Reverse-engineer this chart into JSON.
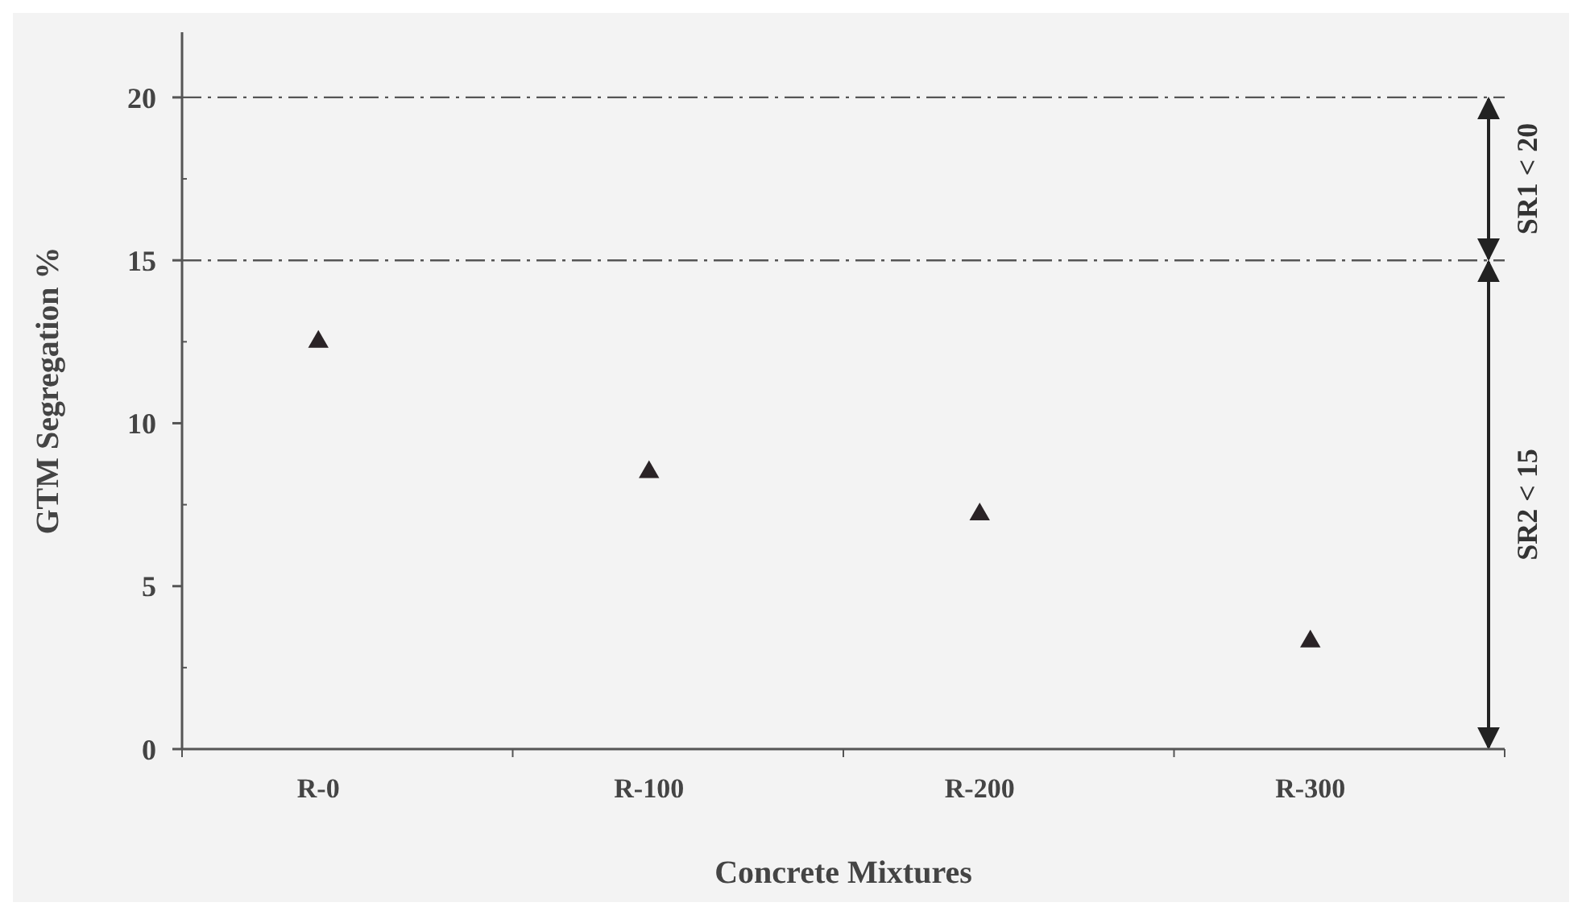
{
  "chart_data": {
    "type": "scatter",
    "xlabel": "Concrete Mixtures",
    "ylabel": "GTM Segregation %",
    "categories": [
      "R-0",
      "R-100",
      "R-200",
      "R-300"
    ],
    "series": [
      {
        "color": "#2a2326",
        "values": [
          12.5,
          8.5,
          7.2,
          3.3
        ]
      }
    ],
    "marker": "triangle",
    "ylim": [
      0,
      22
    ],
    "yticks": [
      0,
      5,
      10,
      15,
      20
    ],
    "grid": false,
    "ref_lines": [
      {
        "axis": "y",
        "value": 20,
        "line_style": "dashdot",
        "color": "#555555"
      },
      {
        "axis": "y",
        "value": 15,
        "line_style": "dashdot",
        "color": "#555555"
      }
    ],
    "annotations": [
      "SR1 < 20",
      "SR2 < 15"
    ]
  }
}
